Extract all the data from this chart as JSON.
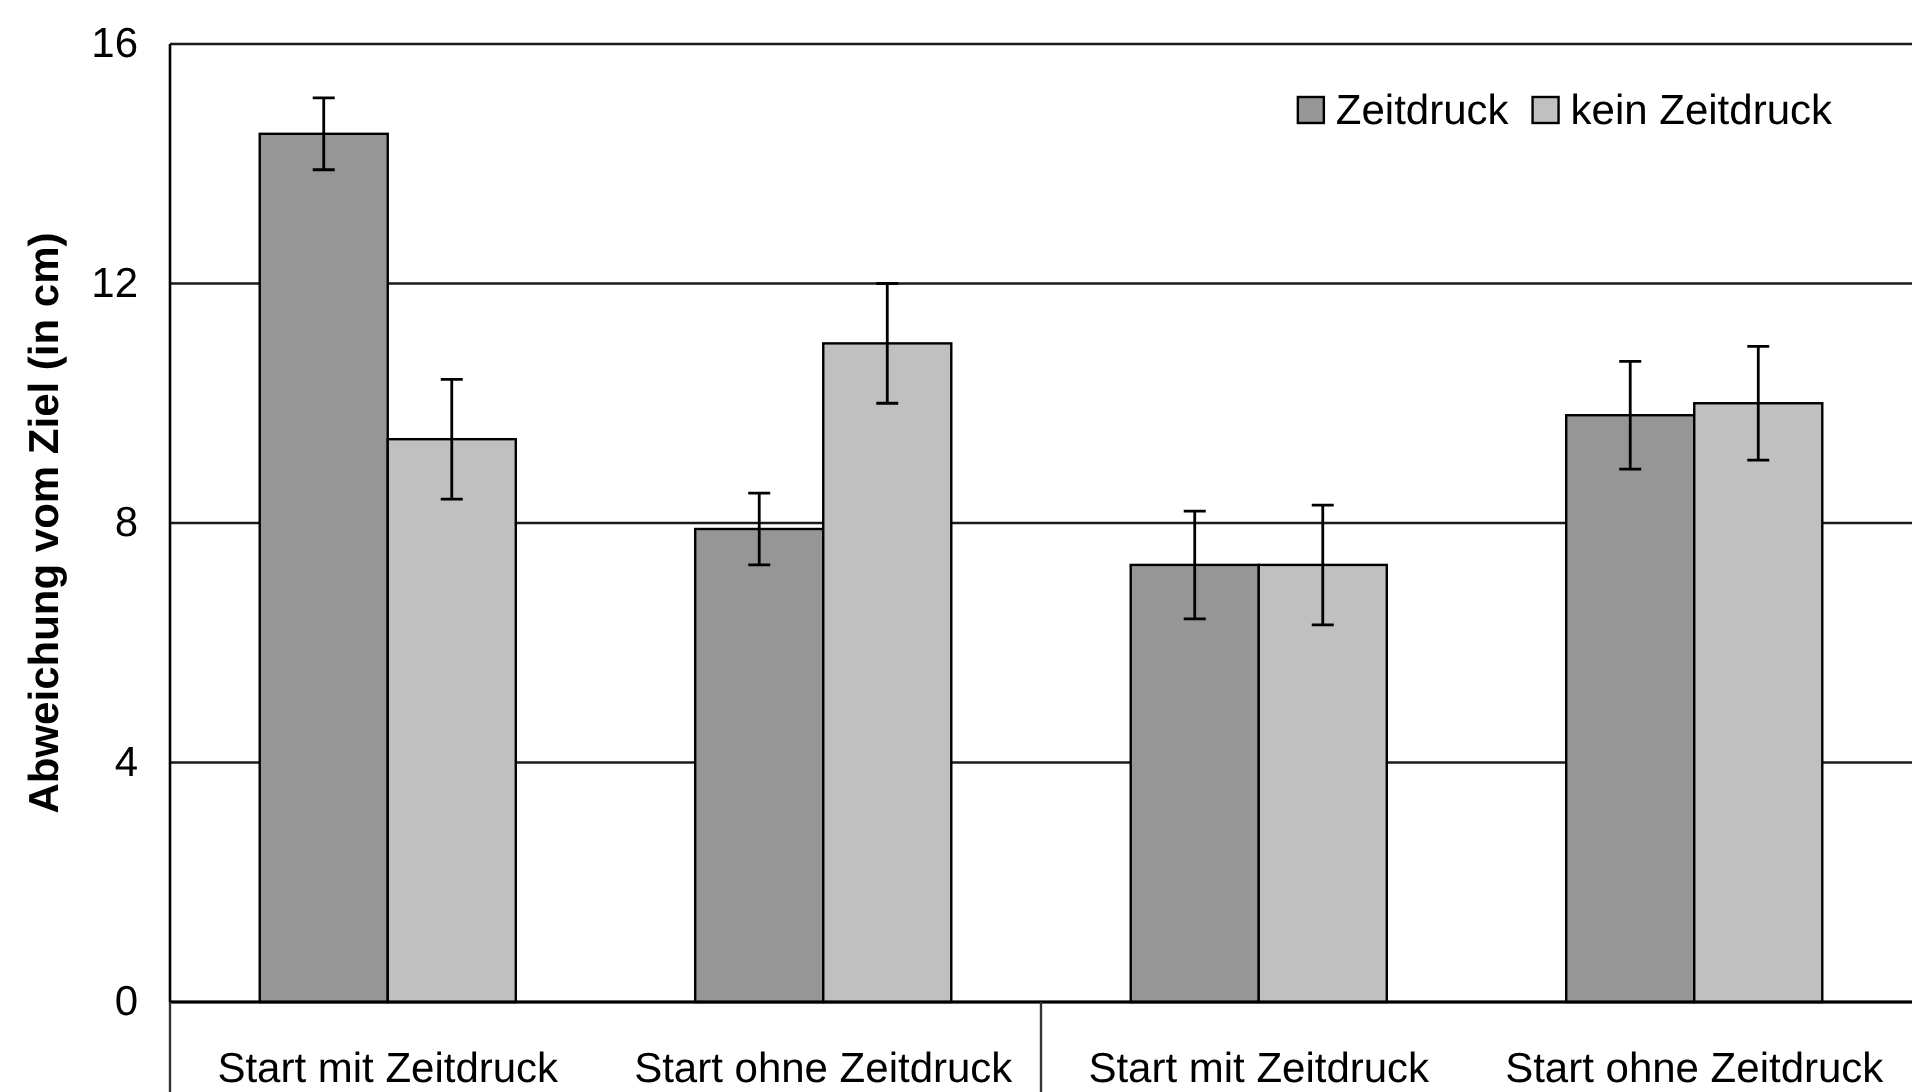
{
  "chart_data": {
    "type": "bar",
    "ylabel": "Abweichung vom Ziel (in cm)",
    "categories": [
      "Start mit Zeitdruck",
      "Start ohne Zeitdruck",
      "Start mit Zeitdruck",
      "Start ohne Zeitdruck"
    ],
    "series": [
      {
        "name": "Zeitdruck",
        "color": "#969696",
        "values": [
          14.5,
          7.9,
          7.3,
          9.8
        ],
        "errors": [
          0.6,
          0.6,
          0.9,
          0.9
        ]
      },
      {
        "name": "kein Zeitdruck",
        "color": "#c0c0c0",
        "values": [
          9.4,
          11.0,
          7.3,
          10.0
        ],
        "errors": [
          1.0,
          1.0,
          1.0,
          0.95
        ]
      }
    ],
    "ylim": [
      0,
      16
    ],
    "yticks": [
      0,
      4,
      8,
      12,
      16
    ],
    "grid": "y",
    "legend": "top right"
  }
}
